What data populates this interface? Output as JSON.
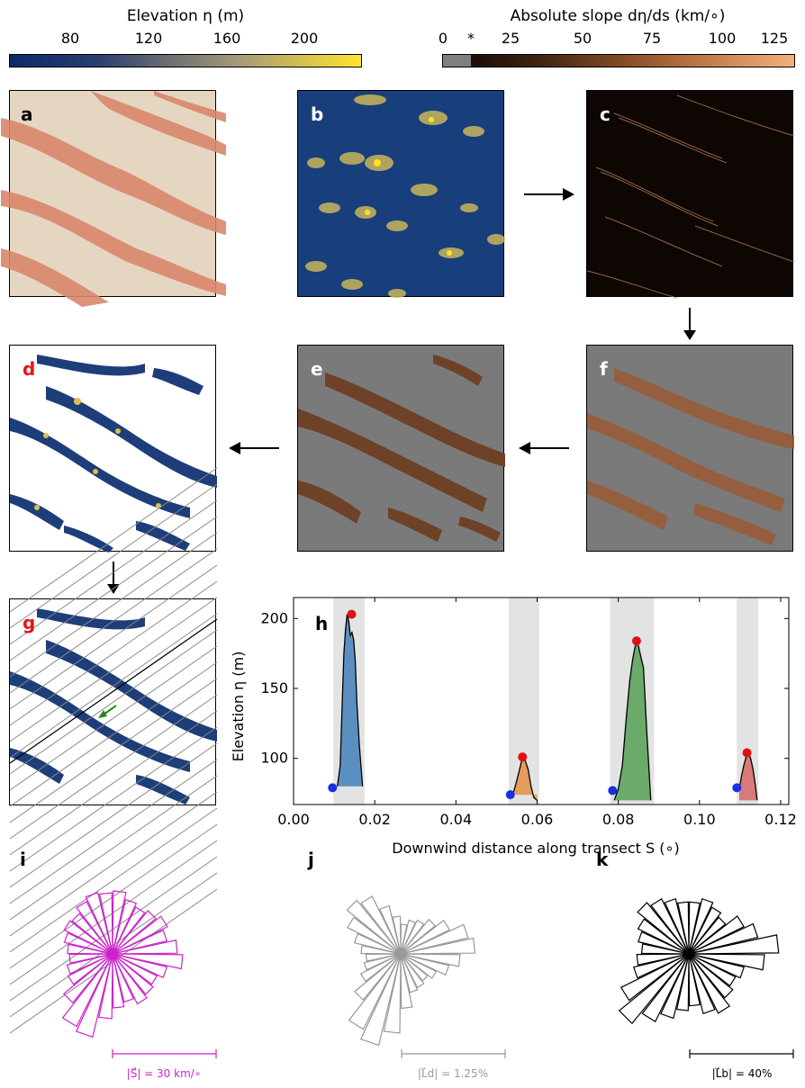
{
  "colorbars": {
    "elevation": {
      "title": "Elevation η (m)",
      "ticks": [
        "80",
        "120",
        "160",
        "200"
      ]
    },
    "slope": {
      "title": "Absolute slope dη/ds (km/∘)",
      "ticks": [
        "0",
        "*",
        "25",
        "50",
        "75",
        "100",
        "125"
      ]
    }
  },
  "panels": {
    "a": "a",
    "b": "b",
    "c": "c",
    "d": "d",
    "e": "e",
    "f": "f",
    "g": "g",
    "h": "h",
    "i": "i",
    "j": "j",
    "k": "k"
  },
  "colors": {
    "panel_d_label": "#e8141c",
    "panel_g_label": "#e8141c",
    "rose_i": "#cc22cc",
    "rose_j": "#999999",
    "rose_k": "#000000",
    "background_gray": "#7a7a7a",
    "ocean_blue": "#183f7c",
    "sand": "#e7d2b8",
    "dune_orange": "#d9866a",
    "green_arrow": "#1e8a1e"
  },
  "chart_data": {
    "type": "area",
    "xlabel": "Downwind distance along transect S (∘)",
    "ylabel": "Elevation η (m)",
    "xlim": [
      0.0,
      0.122
    ],
    "ylim": [
      67,
      215
    ],
    "xticks": [
      "0.00",
      "0.02",
      "0.04",
      "0.06",
      "0.08",
      "0.10",
      "0.12"
    ],
    "yticks": [
      "100",
      "150",
      "200"
    ],
    "grid": false,
    "series": [
      {
        "color": "#5b8fc0",
        "shade": [
          0.0098,
          0.0175
        ],
        "base": 80,
        "x": [
          0.0108,
          0.0115,
          0.012,
          0.0124,
          0.0128,
          0.0132,
          0.0136,
          0.014,
          0.0144,
          0.0148,
          0.0152,
          0.0156,
          0.0162,
          0.017
        ],
        "y": [
          80,
          95,
          140,
          175,
          192,
          203,
          198,
          188,
          190,
          185,
          170,
          140,
          110,
          80
        ],
        "peak": [
          0.0143,
          203
        ],
        "base_point": [
          0.0096,
          79
        ]
      },
      {
        "color": "#e39c5b",
        "shade": [
          0.053,
          0.0605
        ],
        "base": 74,
        "x": [
          0.054,
          0.0548,
          0.0555,
          0.056,
          0.0565,
          0.057,
          0.0578,
          0.0585,
          0.0592,
          0.06
        ],
        "y": [
          74,
          82,
          90,
          96,
          101,
          99,
          92,
          80,
          72,
          70
        ],
        "peak": [
          0.0564,
          101
        ],
        "base_point": [
          0.0534,
          74
        ]
      },
      {
        "color": "#6aaa6a",
        "shade": [
          0.078,
          0.0888
        ],
        "base": 70,
        "x": [
          0.079,
          0.08,
          0.081,
          0.082,
          0.0828,
          0.0835,
          0.084,
          0.0845,
          0.085,
          0.0856,
          0.0862,
          0.087,
          0.088
        ],
        "y": [
          70,
          78,
          95,
          130,
          155,
          170,
          178,
          184,
          180,
          172,
          165,
          120,
          70
        ],
        "peak": [
          0.0845,
          184
        ],
        "base_point": [
          0.0786,
          77
        ]
      },
      {
        "color": "#d97a7a",
        "shade": [
          0.1092,
          0.1145
        ],
        "base": 70,
        "x": [
          0.1098,
          0.1104,
          0.111,
          0.1115,
          0.112,
          0.1126,
          0.1132,
          0.1138,
          0.1142
        ],
        "y": [
          78,
          88,
          96,
          101,
          104,
          100,
          92,
          80,
          70
        ],
        "peak": [
          0.1117,
          104
        ],
        "base_point": [
          0.1092,
          79
        ]
      }
    ]
  },
  "roses": {
    "i": {
      "scale_label": "|S⃗| = 30 km/∘",
      "values": [
        0.7,
        0.62,
        0.58,
        0.62,
        0.68,
        0.62,
        0.72,
        0.78,
        0.62,
        0.55,
        0.58,
        0.62,
        0.55,
        0.6,
        0.72,
        0.95,
        0.9,
        0.7,
        0.55,
        0.52,
        0.48,
        0.5,
        0.55,
        0.6,
        0.58,
        0.65,
        0.7,
        0.68
      ]
    },
    "j": {
      "scale_label": "|L⃗d| = 1.25%",
      "values": [
        0.3,
        0.35,
        0.38,
        0.45,
        0.55,
        0.7,
        0.75,
        0.6,
        0.5,
        0.4,
        0.35,
        0.38,
        0.4,
        0.55,
        0.8,
        0.95,
        0.85,
        0.6,
        0.45,
        0.38,
        0.35,
        0.4,
        0.48,
        0.6,
        0.7,
        0.65,
        0.5,
        0.38
      ]
    },
    "k": {
      "scale_label": "|L⃗b| = 40%",
      "values": [
        0.55,
        0.6,
        0.55,
        0.5,
        0.65,
        0.75,
        0.95,
        0.8,
        0.6,
        0.55,
        0.6,
        0.7,
        0.65,
        0.55,
        0.6,
        0.7,
        0.8,
        0.95,
        0.8,
        0.6,
        0.55,
        0.5,
        0.55,
        0.6,
        0.7,
        0.65,
        0.6,
        0.55
      ]
    }
  }
}
